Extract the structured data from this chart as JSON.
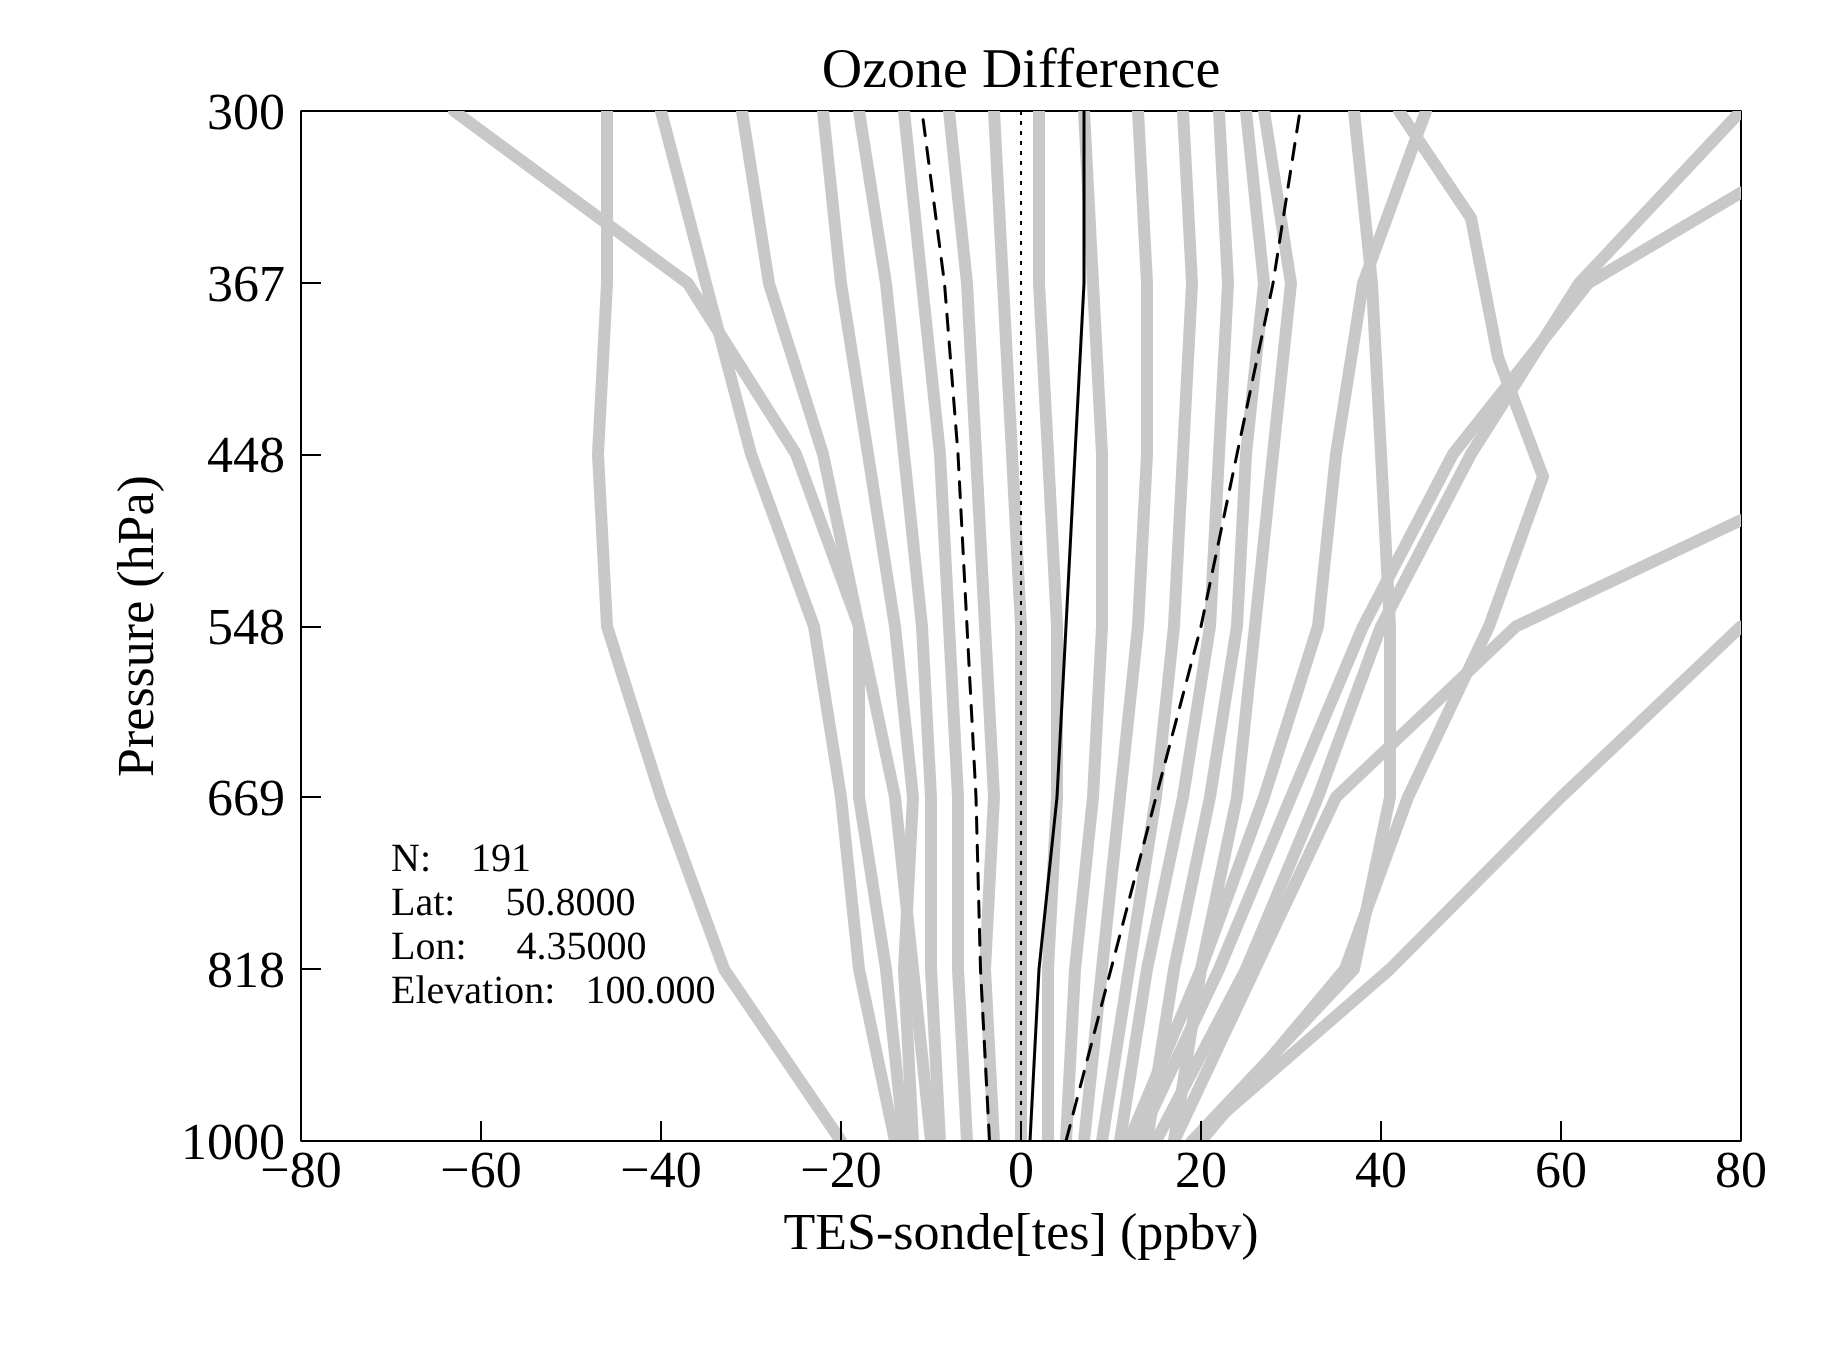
{
  "chart_data": {
    "type": "line",
    "title": "Ozone Difference",
    "xlabel": "TES-sonde[tes] (ppbv)",
    "ylabel": "Pressure (hPa)",
    "log": "y",
    "xlim": [
      -80,
      80
    ],
    "ylim": [
      1000,
      300
    ],
    "xticks": [
      -80,
      -60,
      -40,
      -20,
      0,
      20,
      40,
      60,
      80
    ],
    "yticks": [
      300,
      367,
      448,
      548,
      669,
      818,
      1000
    ],
    "grid": false,
    "ref_lines": [
      {
        "axis": "x",
        "value": 0,
        "color": "#000000",
        "line_style": "dotted"
      }
    ],
    "annotations": [
      "N:    191",
      "Lat:     50.8000",
      "Lon:     4.35000",
      "Elevation:   100.000"
    ],
    "series": [
      {
        "color": "#c8c8c8",
        "x": [
          -12,
          -13,
          -12,
          -14,
          -17,
          -20,
          -22
        ],
        "values": [
          1000,
          818,
          669,
          548,
          448,
          367,
          300
        ]
      },
      {
        "color": "#c8c8c8",
        "x": [
          -9,
          -10,
          -10,
          -11,
          -13,
          -15,
          -18
        ],
        "values": [
          1000,
          818,
          669,
          548,
          448,
          367,
          300
        ]
      },
      {
        "color": "#c8c8c8",
        "x": [
          -6,
          -7,
          -7,
          -8,
          -9,
          -11,
          -13
        ],
        "values": [
          1000,
          818,
          669,
          548,
          448,
          367,
          300
        ]
      },
      {
        "color": "#c8c8c8",
        "x": [
          -3,
          -4,
          -3,
          -4,
          -5,
          -6,
          -8
        ],
        "values": [
          1000,
          818,
          669,
          548,
          448,
          367,
          300
        ]
      },
      {
        "color": "#c8c8c8",
        "x": [
          0,
          0,
          0,
          0,
          -1,
          -2,
          -3
        ],
        "values": [
          1000,
          818,
          669,
          548,
          448,
          367,
          300
        ]
      },
      {
        "color": "#c8c8c8",
        "x": [
          3,
          3,
          4,
          4,
          3,
          2,
          2
        ],
        "values": [
          1000,
          818,
          669,
          548,
          448,
          367,
          300
        ]
      },
      {
        "color": "#c8c8c8",
        "x": [
          5,
          6,
          8,
          9,
          9,
          8,
          7
        ],
        "values": [
          1000,
          818,
          669,
          548,
          448,
          367,
          300
        ]
      },
      {
        "color": "#c8c8c8",
        "x": [
          7,
          9,
          11,
          13,
          14,
          14,
          13
        ],
        "values": [
          1000,
          818,
          669,
          548,
          448,
          367,
          300
        ]
      },
      {
        "color": "#c8c8c8",
        "x": [
          9,
          12,
          15,
          17,
          18,
          19,
          18
        ],
        "values": [
          1000,
          818,
          669,
          548,
          448,
          367,
          300
        ]
      },
      {
        "color": "#c8c8c8",
        "x": [
          11,
          14,
          18,
          21,
          22,
          23,
          22
        ],
        "values": [
          1000,
          818,
          669,
          548,
          448,
          367,
          300
        ]
      },
      {
        "color": "#c8c8c8",
        "x": [
          14,
          17,
          21,
          24,
          25,
          27,
          25
        ],
        "values": [
          1000,
          818,
          669,
          548,
          448,
          367,
          300
        ]
      },
      {
        "color": "#c8c8c8",
        "x": [
          17,
          20,
          24,
          26,
          28,
          30,
          27
        ],
        "values": [
          1000,
          818,
          669,
          548,
          448,
          367,
          300
        ]
      },
      {
        "color": "#c8c8c8",
        "x": [
          -20,
          -33,
          -40,
          -46,
          -47,
          -46,
          -46
        ],
        "values": [
          1000,
          818,
          669,
          548,
          448,
          367,
          300
        ]
      },
      {
        "color": "#c8c8c8",
        "x": [
          -13,
          -15,
          -18,
          -18,
          -25,
          -37,
          -63
        ],
        "values": [
          1000,
          818,
          669,
          548,
          448,
          367,
          300
        ]
      },
      {
        "color": "#c8c8c8",
        "x": [
          -14,
          -18,
          -20,
          -23,
          -30,
          -35,
          -40
        ],
        "values": [
          1000,
          818,
          669,
          548,
          448,
          367,
          300
        ]
      },
      {
        "color": "#c8c8c8",
        "x": [
          -10,
          -12,
          -14,
          -18,
          -22,
          -28,
          -31
        ],
        "values": [
          1000,
          818,
          669,
          548,
          448,
          367,
          300
        ]
      },
      {
        "color": "#c8c8c8",
        "x": [
          19,
          41,
          60,
          80
        ],
        "values": [
          1000,
          818,
          669,
          548
        ]
      },
      {
        "color": "#c8c8c8",
        "x": [
          17,
          35,
          55,
          80
        ],
        "values": [
          1000,
          669,
          548,
          484
        ]
      },
      {
        "color": "#c8c8c8",
        "x": [
          20,
          36,
          43,
          52,
          58,
          53,
          50,
          42
        ],
        "values": [
          1000,
          818,
          669,
          548,
          460,
          400,
          340,
          300
        ]
      },
      {
        "color": "#c8c8c8",
        "x": [
          19,
          37,
          41,
          41,
          40,
          39,
          37
        ],
        "values": [
          1000,
          818,
          669,
          548,
          448,
          367,
          300
        ]
      },
      {
        "color": "#c8c8c8",
        "x": [
          15,
          25,
          33,
          40,
          50,
          62,
          80
        ],
        "values": [
          1000,
          818,
          669,
          548,
          448,
          367,
          300
        ]
      },
      {
        "color": "#c8c8c8",
        "x": [
          13,
          22,
          30,
          38,
          48,
          63,
          80
        ],
        "values": [
          1000,
          818,
          669,
          548,
          448,
          367,
          330
        ]
      },
      {
        "color": "#c8c8c8",
        "x": [
          12,
          20,
          27,
          33,
          35,
          38,
          45
        ],
        "values": [
          1000,
          818,
          669,
          548,
          448,
          367,
          300
        ]
      },
      {
        "color": "#000000",
        "line_style": "solid",
        "x": [
          1,
          2,
          4,
          5,
          6,
          7,
          7
        ],
        "values": [
          1000,
          818,
          669,
          548,
          448,
          367,
          300
        ]
      },
      {
        "color": "#000000",
        "line_style": "dashed",
        "x": [
          -3.5,
          -4.5,
          -5,
          -6,
          -7,
          -8.5,
          -11
        ],
        "values": [
          1000,
          818,
          669,
          548,
          448,
          367,
          300
        ]
      },
      {
        "color": "#000000",
        "line_style": "dashed",
        "x": [
          5,
          10,
          15,
          20,
          24,
          28,
          31
        ],
        "values": [
          1000,
          818,
          669,
          548,
          448,
          367,
          300
        ]
      }
    ]
  }
}
